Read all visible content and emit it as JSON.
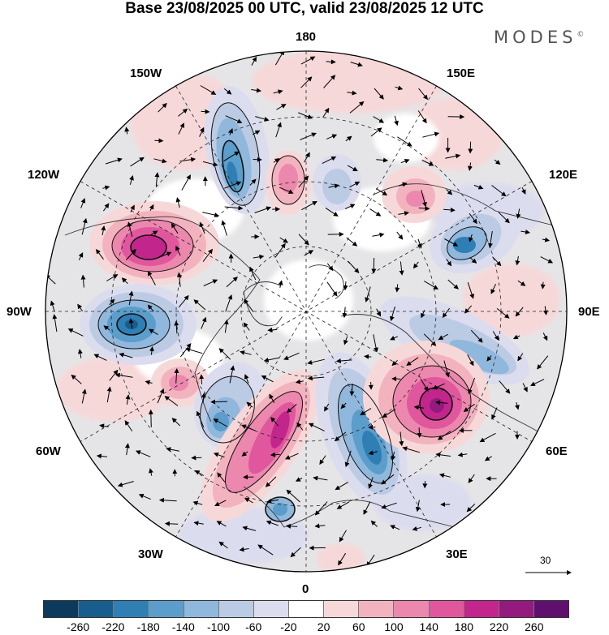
{
  "title": "Base 23/08/2025 00 UTC, valid 23/08/2025 12 UTC",
  "brand": "MODES",
  "brand_mark": "©",
  "longitude_labels": {
    "top": "180",
    "top_left": "150W",
    "top_right": "150E",
    "upper_left": "120W",
    "upper_right": "120E",
    "left": "90W",
    "right": "90E",
    "lower_left": "60W",
    "lower_right": "60E",
    "bottom_left": "30W",
    "bottom_right": "30E",
    "bottom": "0"
  },
  "vector_scale": {
    "label": "30"
  },
  "colorbar": {
    "ticks": [
      "-260",
      "-220",
      "-180",
      "-140",
      "-100",
      "-60",
      "-20",
      "20",
      "60",
      "100",
      "140",
      "180",
      "220",
      "260"
    ],
    "colors": [
      "#0d3a5c",
      "#175e8e",
      "#2f7fb5",
      "#5b9dcb",
      "#90b7dc",
      "#bccbe4",
      "#dcdcef",
      "#ffffff",
      "#f7d8d9",
      "#f2b3bf",
      "#ec87ad",
      "#e0579e",
      "#c2268c",
      "#951a7e",
      "#5f0f6e"
    ]
  },
  "map_colors": {
    "background": "#e5e5e7",
    "grid": "#222222",
    "coast": "#333333"
  }
}
